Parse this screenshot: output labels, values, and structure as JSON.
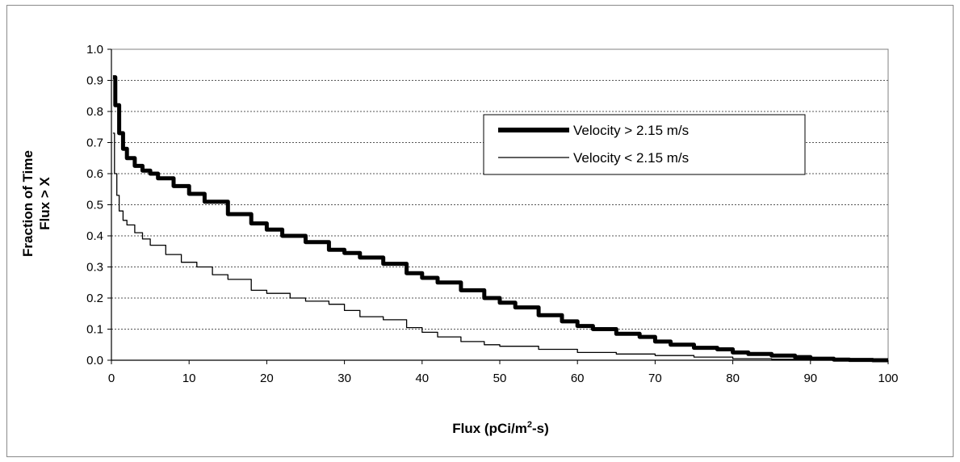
{
  "chart_data": {
    "type": "line",
    "xlabel_main": "Flux (pCi/m",
    "xlabel_sup": "2",
    "xlabel_tail": "-s)",
    "ylabel_line1": "Fraction of Time",
    "ylabel_line2": "Flux > X",
    "xlim": [
      0,
      100
    ],
    "ylim": [
      0,
      1.0
    ],
    "x_ticks": [
      "0",
      "10",
      "20",
      "30",
      "40",
      "50",
      "60",
      "70",
      "80",
      "90",
      "100"
    ],
    "y_ticks": [
      "0.0",
      "0.1",
      "0.2",
      "0.3",
      "0.4",
      "0.5",
      "0.6",
      "0.7",
      "0.8",
      "0.9",
      "1.0"
    ],
    "grid": "horizontal-dotted",
    "legend_position": "upper-right",
    "series": [
      {
        "name": "Velocity > 2.15 m/s",
        "color": "#000000",
        "style": "thick",
        "x": [
          0.2,
          0.5,
          1,
          1.5,
          2,
          3,
          4,
          5,
          6,
          8,
          10,
          12,
          15,
          18,
          20,
          22,
          25,
          28,
          30,
          32,
          35,
          38,
          40,
          42,
          45,
          48,
          50,
          52,
          55,
          58,
          60,
          62,
          65,
          68,
          70,
          72,
          75,
          78,
          80,
          82,
          85,
          88,
          90,
          93,
          95,
          98,
          100
        ],
        "y": [
          0.91,
          0.82,
          0.73,
          0.68,
          0.65,
          0.625,
          0.61,
          0.6,
          0.585,
          0.56,
          0.535,
          0.51,
          0.47,
          0.44,
          0.42,
          0.4,
          0.38,
          0.355,
          0.345,
          0.33,
          0.31,
          0.28,
          0.265,
          0.25,
          0.225,
          0.2,
          0.185,
          0.17,
          0.145,
          0.125,
          0.11,
          0.1,
          0.085,
          0.075,
          0.06,
          0.05,
          0.04,
          0.035,
          0.025,
          0.02,
          0.015,
          0.01,
          0.005,
          0.002,
          0.001,
          0.0,
          0.0
        ]
      },
      {
        "name": "Velocity < 2.15 m/s",
        "color": "#000000",
        "style": "thin",
        "x": [
          0.2,
          0.4,
          0.7,
          1,
          1.5,
          2,
          3,
          4,
          5,
          7,
          9,
          11,
          13,
          15,
          18,
          20,
          23,
          25,
          28,
          30,
          32,
          35,
          38,
          40,
          42,
          45,
          48,
          50,
          55,
          60,
          65,
          70,
          75,
          80,
          85,
          90,
          95,
          100
        ],
        "y": [
          0.73,
          0.6,
          0.53,
          0.48,
          0.45,
          0.435,
          0.41,
          0.39,
          0.37,
          0.34,
          0.315,
          0.3,
          0.275,
          0.26,
          0.225,
          0.215,
          0.2,
          0.19,
          0.18,
          0.16,
          0.14,
          0.13,
          0.105,
          0.09,
          0.075,
          0.06,
          0.05,
          0.045,
          0.035,
          0.025,
          0.02,
          0.015,
          0.01,
          0.005,
          0.003,
          0.001,
          0.0,
          0.0
        ]
      }
    ]
  }
}
